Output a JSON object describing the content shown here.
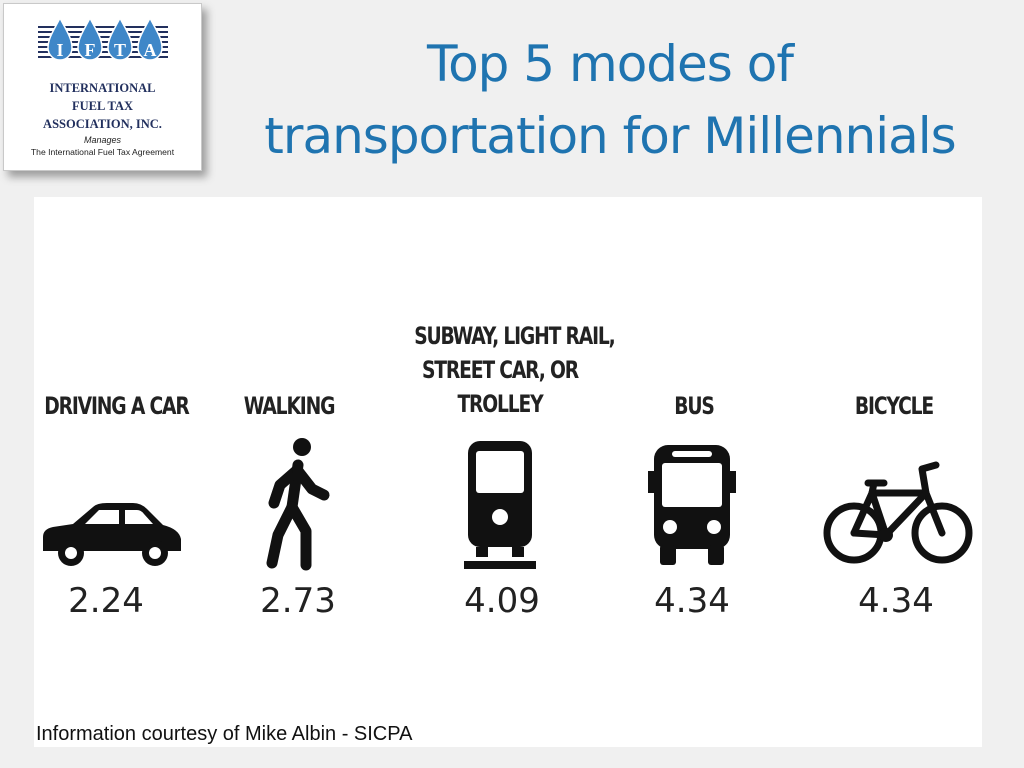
{
  "logo": {
    "letters": [
      "I",
      "F",
      "T",
      "A"
    ],
    "line1": "INTERNATIONAL",
    "line2": "FUEL TAX",
    "line3": "ASSOCIATION, INC.",
    "line4": "Manages",
    "line5": "The International Fuel Tax Agreement",
    "brand_color": "#22305e",
    "drop_color": "#3f87c8"
  },
  "title": {
    "line1": "Top 5 modes of",
    "line2": "transportation for Millennials",
    "color": "#1f74b0"
  },
  "modes": [
    {
      "label_lines": [
        "DRIVING A CAR"
      ],
      "value": "2.24",
      "icon": "car-icon"
    },
    {
      "label_lines": [
        "WALKING"
      ],
      "value": "2.73",
      "icon": "walking-person-icon"
    },
    {
      "label_lines": [
        "SUBWAY, LIGHT RAIL,",
        "STREET CAR, OR",
        "TROLLEY"
      ],
      "value": "4.09",
      "icon": "train-icon"
    },
    {
      "label_lines": [
        "BUS"
      ],
      "value": "4.34",
      "icon": "bus-icon"
    },
    {
      "label_lines": [
        "BICYCLE"
      ],
      "value": "4.34",
      "icon": "bicycle-icon"
    }
  ],
  "credit": "Information courtesy of Mike Albin - SICPA"
}
